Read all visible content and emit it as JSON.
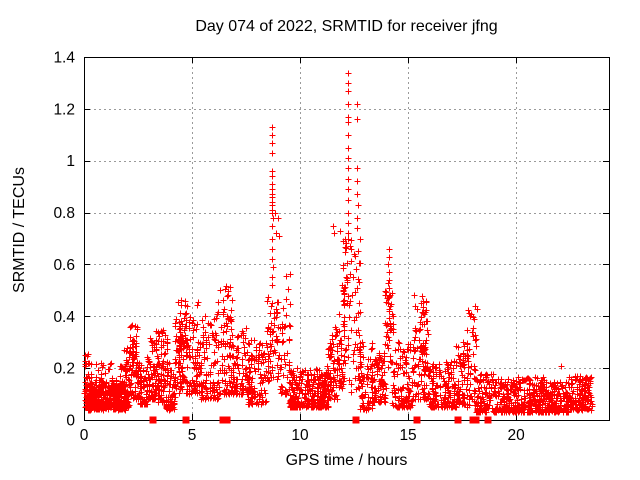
{
  "chart_data": {
    "type": "scatter",
    "title": "Day 074 of 2022, SRMTID for receiver jfng",
    "xlabel": "GPS time / hours",
    "ylabel": "SRMTID / TECUs",
    "xlim": [
      0,
      24.3
    ],
    "ylim": [
      0,
      1.4
    ],
    "xticks": [
      0,
      5,
      10,
      15,
      20
    ],
    "xticklabels": [
      "0",
      "5",
      "10",
      "15",
      "20"
    ],
    "yticks": [
      0,
      0.2,
      0.4,
      0.6,
      0.8,
      1,
      1.2,
      1.4
    ],
    "yticklabels": [
      "0",
      "0.2",
      "0.4",
      "0.6",
      "0.8",
      "1",
      "1.2",
      "1.4"
    ],
    "grid": true,
    "grid_style": "dashed",
    "legend": "none",
    "marker": "plus",
    "colors": {
      "marker": "#ff0000",
      "grid": "#9a9a9a",
      "border": "#000000",
      "background": "#ffffff"
    },
    "series": [
      {
        "name": "srmtid-points",
        "marker": "plus",
        "seed": 20220074,
        "bands_format": [
          "t_start",
          "t_end",
          "count",
          "y_min",
          "y_max",
          "low_bias"
        ],
        "bands": [
          [
            0.0,
            0.35,
            60,
            0.05,
            0.26,
            2.0
          ],
          [
            0.2,
            1.9,
            340,
            0.04,
            0.15,
            1.5
          ],
          [
            0.5,
            1.9,
            60,
            0.1,
            0.22,
            2.0
          ],
          [
            1.85,
            2.15,
            50,
            0.05,
            0.28,
            1.6
          ],
          [
            2.1,
            2.45,
            60,
            0.08,
            0.38,
            1.4
          ],
          [
            2.45,
            2.95,
            70,
            0.06,
            0.22,
            1.7
          ],
          [
            2.9,
            3.35,
            70,
            0.08,
            0.34,
            1.5
          ],
          [
            3.3,
            3.85,
            80,
            0.07,
            0.36,
            1.6
          ],
          [
            3.8,
            4.25,
            60,
            0.04,
            0.24,
            1.6
          ],
          [
            4.2,
            4.55,
            50,
            0.1,
            0.4,
            1.3
          ],
          [
            4.35,
            4.75,
            45,
            0.15,
            0.49,
            1.2
          ],
          [
            4.7,
            5.45,
            90,
            0.1,
            0.46,
            1.8
          ],
          [
            5.4,
            6.2,
            90,
            0.08,
            0.41,
            1.8
          ],
          [
            6.2,
            6.85,
            80,
            0.1,
            0.52,
            1.7
          ],
          [
            6.8,
            7.6,
            90,
            0.1,
            0.36,
            1.8
          ],
          [
            7.55,
            8.45,
            100,
            0.06,
            0.31,
            1.7
          ],
          [
            8.45,
            9.0,
            60,
            0.15,
            0.48,
            1.2
          ],
          [
            8.95,
            9.55,
            50,
            0.1,
            0.58,
            1.9
          ],
          [
            9.5,
            11.3,
            280,
            0.05,
            0.2,
            1.8
          ],
          [
            11.25,
            11.75,
            60,
            0.08,
            0.36,
            1.5
          ],
          [
            11.7,
            12.05,
            45,
            0.12,
            0.55,
            1.3
          ],
          [
            12.0,
            12.35,
            40,
            0.15,
            0.72,
            1.0
          ],
          [
            12.35,
            12.8,
            45,
            0.1,
            0.72,
            1.4
          ],
          [
            12.75,
            13.35,
            70,
            0.04,
            0.3,
            1.7
          ],
          [
            13.3,
            13.95,
            80,
            0.07,
            0.26,
            1.7
          ],
          [
            13.9,
            14.3,
            45,
            0.12,
            0.55,
            1.2
          ],
          [
            14.25,
            15.25,
            110,
            0.05,
            0.3,
            1.9
          ],
          [
            15.2,
            15.95,
            80,
            0.08,
            0.5,
            2.0
          ],
          [
            15.55,
            15.85,
            25,
            0.2,
            0.5,
            1.0
          ],
          [
            15.9,
            17.25,
            150,
            0.05,
            0.23,
            1.7
          ],
          [
            17.2,
            17.75,
            60,
            0.06,
            0.3,
            1.7
          ],
          [
            17.7,
            18.2,
            50,
            0.05,
            0.44,
            1.8
          ],
          [
            18.15,
            19.05,
            100,
            0.03,
            0.18,
            1.7
          ],
          [
            19.0,
            20.0,
            130,
            0.03,
            0.16,
            1.7
          ],
          [
            20.0,
            21.5,
            200,
            0.03,
            0.17,
            1.7
          ],
          [
            21.5,
            22.4,
            120,
            0.03,
            0.15,
            1.7
          ],
          [
            22.4,
            23.5,
            150,
            0.04,
            0.17,
            1.6
          ]
        ],
        "points": [
          [
            0.05,
            0.25
          ],
          [
            8.68,
            1.13
          ],
          [
            8.7,
            1.1
          ],
          [
            8.69,
            1.07
          ],
          [
            8.71,
            1.03
          ],
          [
            8.7,
            0.96
          ],
          [
            8.72,
            0.94
          ],
          [
            8.69,
            0.91
          ],
          [
            8.7,
            0.89
          ],
          [
            8.71,
            0.87
          ],
          [
            8.69,
            0.86
          ],
          [
            8.72,
            0.84
          ],
          [
            8.7,
            0.83
          ],
          [
            8.68,
            0.81
          ],
          [
            8.71,
            0.8
          ],
          [
            8.73,
            0.78
          ],
          [
            8.7,
            0.75
          ],
          [
            8.86,
            0.8
          ],
          [
            8.88,
            0.72
          ],
          [
            9.0,
            0.78
          ],
          [
            9.02,
            0.71
          ],
          [
            8.69,
            0.7
          ],
          [
            8.71,
            0.66
          ],
          [
            8.7,
            0.62
          ],
          [
            8.73,
            0.59
          ],
          [
            8.7,
            0.55
          ],
          [
            8.72,
            0.52
          ],
          [
            12.22,
            1.34
          ],
          [
            12.22,
            1.3
          ],
          [
            12.21,
            1.27
          ],
          [
            12.23,
            1.22
          ],
          [
            12.63,
            1.22
          ],
          [
            12.21,
            1.17
          ],
          [
            12.64,
            1.16
          ],
          [
            12.22,
            1.15
          ],
          [
            12.23,
            1.1
          ],
          [
            12.21,
            1.05
          ],
          [
            12.24,
            1.01
          ],
          [
            12.22,
            0.97
          ],
          [
            12.62,
            0.97
          ],
          [
            12.23,
            0.93
          ],
          [
            12.65,
            0.92
          ],
          [
            12.21,
            0.89
          ],
          [
            12.63,
            0.87
          ],
          [
            12.22,
            0.85
          ],
          [
            12.66,
            0.83
          ],
          [
            12.23,
            0.8
          ],
          [
            12.64,
            0.78
          ],
          [
            12.21,
            0.76
          ],
          [
            12.63,
            0.74
          ],
          [
            12.22,
            0.72
          ],
          [
            11.52,
            0.75
          ],
          [
            11.56,
            0.72
          ],
          [
            11.85,
            0.73
          ],
          [
            14.1,
            0.66
          ],
          [
            14.12,
            0.63
          ],
          [
            14.09,
            0.6
          ],
          [
            14.11,
            0.57
          ],
          [
            14.1,
            0.54
          ],
          [
            14.13,
            0.51
          ],
          [
            14.11,
            0.48
          ],
          [
            14.09,
            0.45
          ],
          [
            14.12,
            0.42
          ],
          [
            22.1,
            0.21
          ]
        ]
      },
      {
        "name": "gap-flags",
        "marker": "filled-square",
        "y": 0,
        "x": [
          3.2,
          4.7,
          6.45,
          6.62,
          12.6,
          15.4,
          17.3,
          18.0,
          18.15,
          18.7
        ]
      }
    ]
  }
}
